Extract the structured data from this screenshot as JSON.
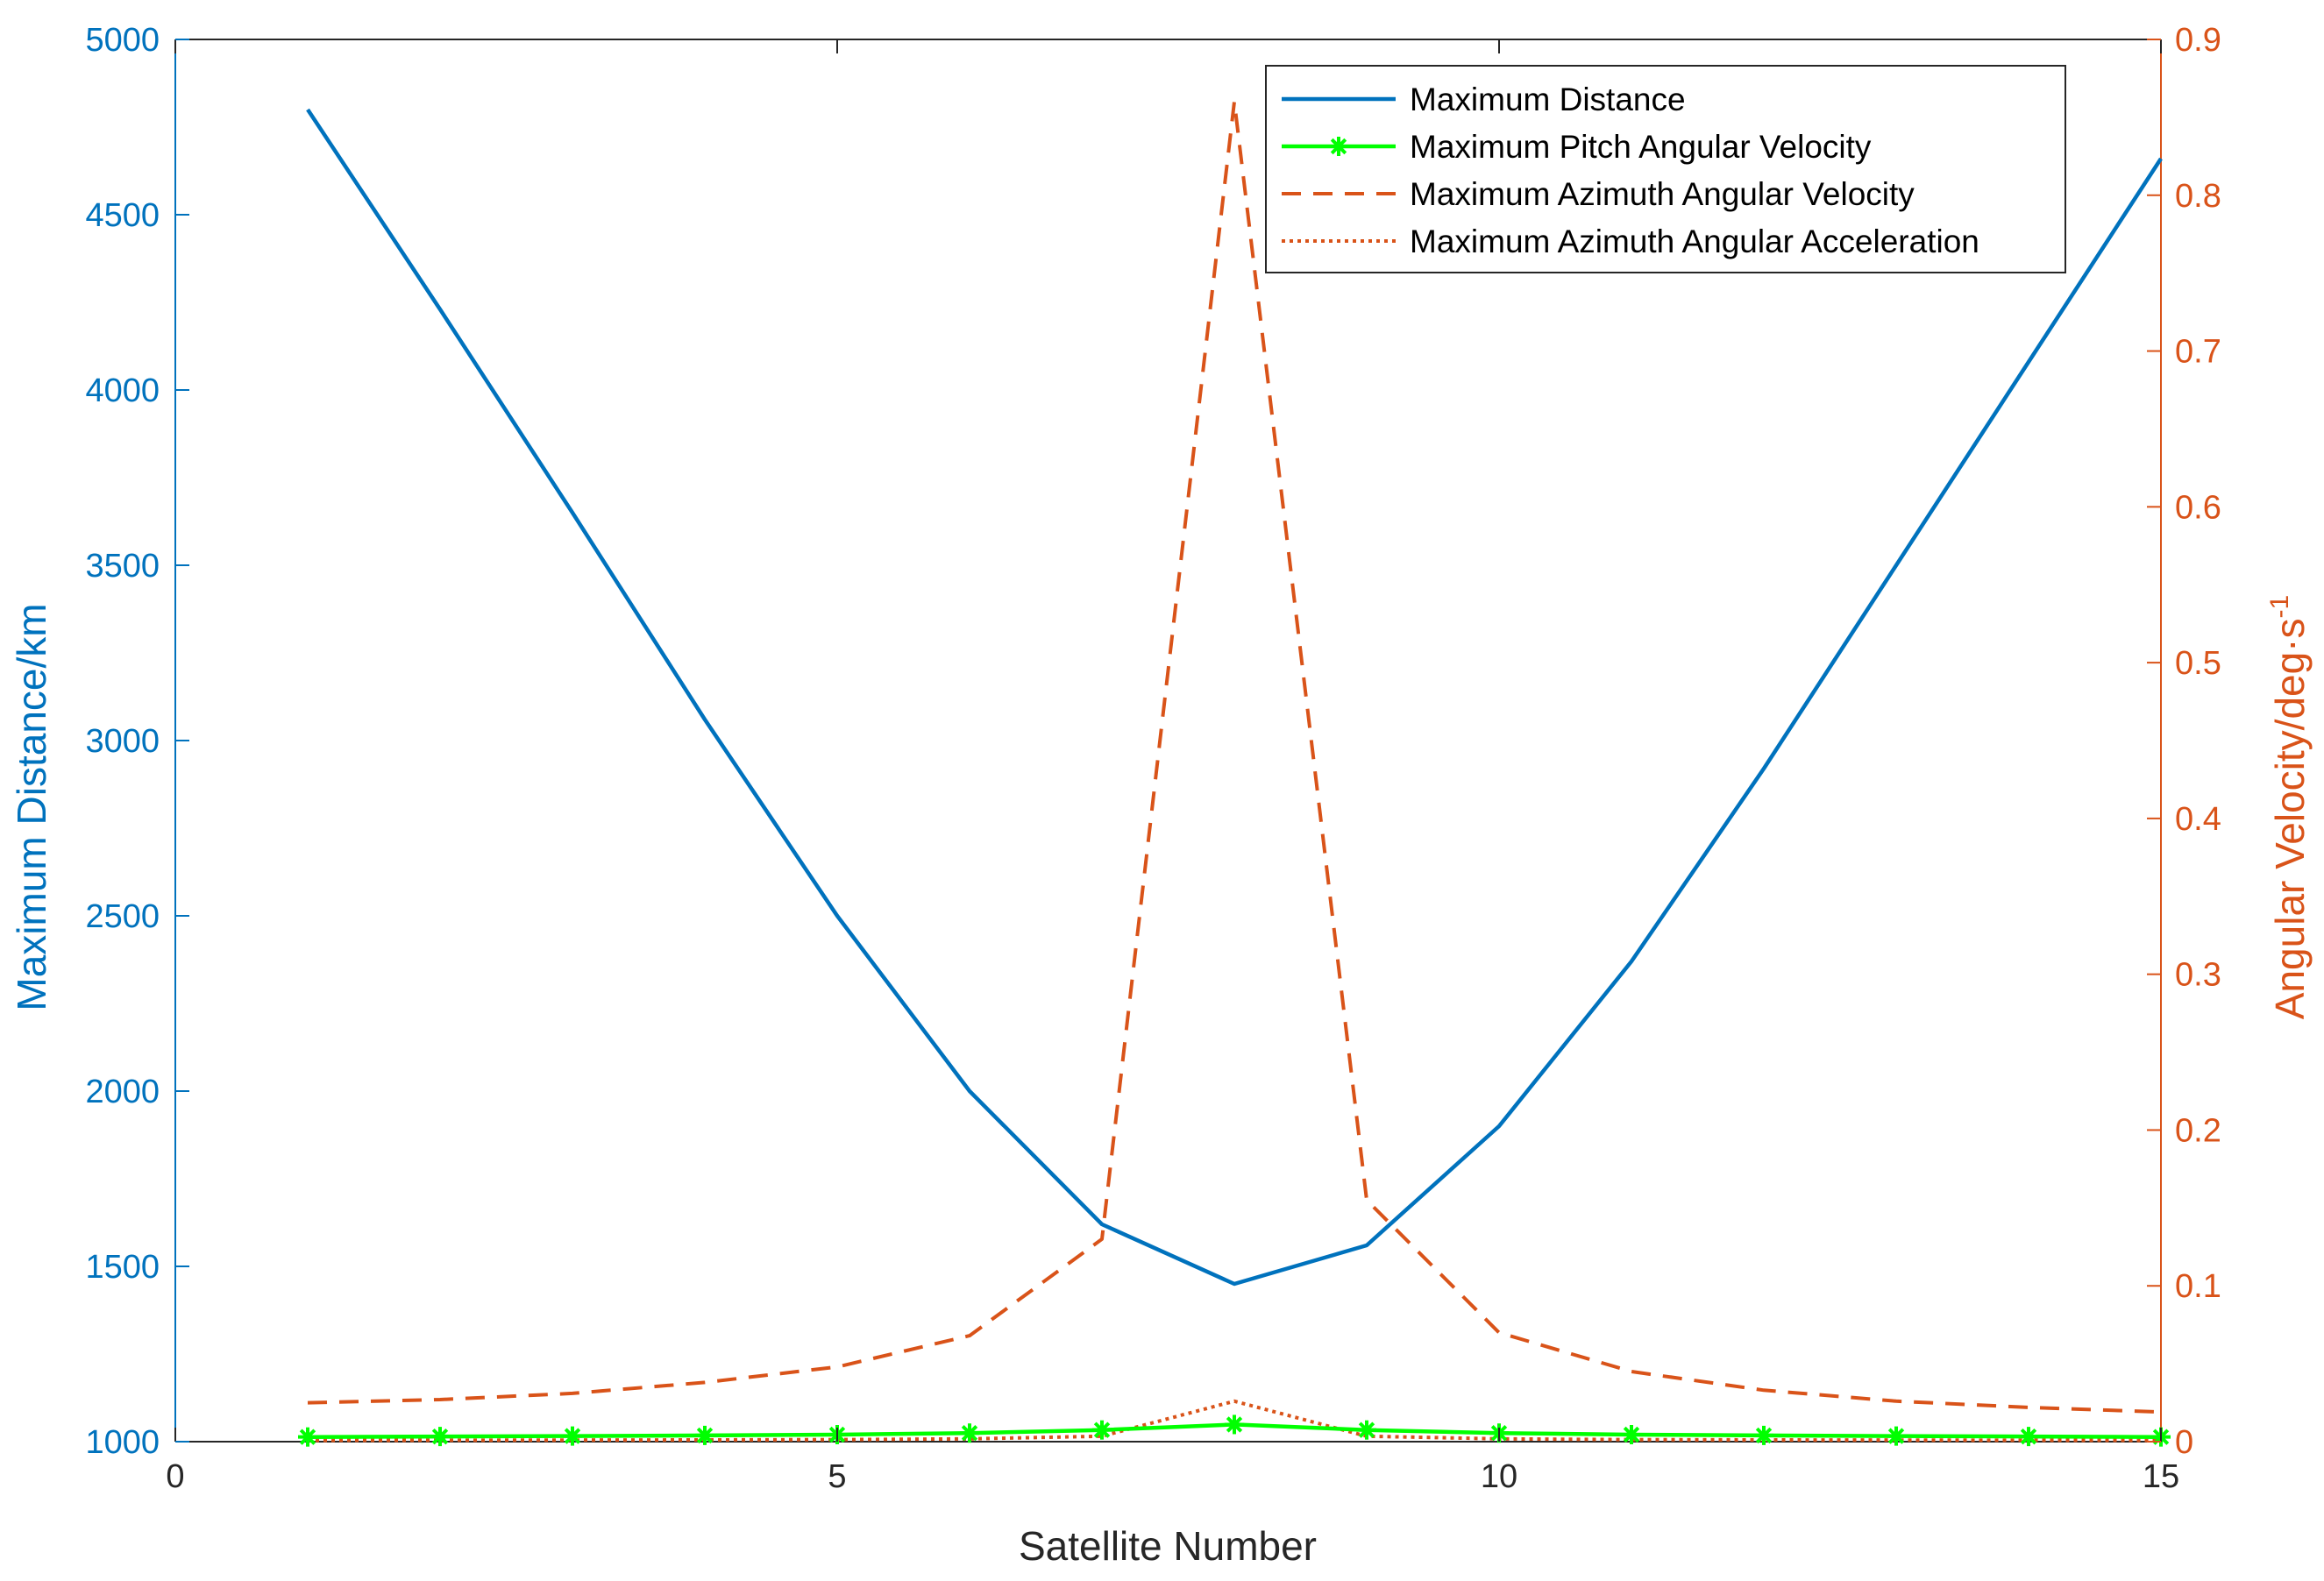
{
  "colors": {
    "left_axis": "#0072BD",
    "right_axis": "#D95319",
    "pitch": "#00FF00",
    "frame": "#000000"
  },
  "chart_data": {
    "type": "line",
    "xlabel": "Satellite Number",
    "ylabel_left": "Maximum Distance/km",
    "ylabel_right_base": "Angular Velocity/deg·s",
    "ylabel_right_exp": "-1",
    "xlim": [
      0,
      15
    ],
    "ylim_left": [
      1000,
      5000
    ],
    "ylim_right": [
      0,
      0.9
    ],
    "xticks": [
      "0",
      "5",
      "10",
      "15"
    ],
    "yticks_left": [
      "1000",
      "1500",
      "2000",
      "2500",
      "3000",
      "3500",
      "4000",
      "4500",
      "5000"
    ],
    "yticks_right": [
      "0",
      "0.1",
      "0.2",
      "0.3",
      "0.4",
      "0.5",
      "0.6",
      "0.7",
      "0.8",
      "0.9"
    ],
    "legend_position": "top-right",
    "x": [
      1,
      2,
      3,
      4,
      5,
      6,
      7,
      8,
      9,
      10,
      11,
      12,
      13,
      14,
      15
    ],
    "series": [
      {
        "name": "Maximum Distance",
        "axis": "left",
        "style": "solid",
        "values": [
          4800,
          4230,
          3650,
          3060,
          2500,
          2000,
          1620,
          1450,
          1560,
          1900,
          2370,
          2920,
          3500,
          4080,
          4660
        ]
      },
      {
        "name": "Maximum Pitch Angular Velocity",
        "axis": "right",
        "style": "solid-marker",
        "values": [
          0.003,
          0.0033,
          0.0036,
          0.004,
          0.0045,
          0.0055,
          0.0075,
          0.011,
          0.0075,
          0.0055,
          0.0045,
          0.004,
          0.0036,
          0.0033,
          0.003
        ]
      },
      {
        "name": "Maximum Azimuth Angular Velocity",
        "axis": "right",
        "style": "dashed",
        "values": [
          0.025,
          0.027,
          0.031,
          0.038,
          0.048,
          0.068,
          0.13,
          0.86,
          0.155,
          0.07,
          0.045,
          0.033,
          0.026,
          0.022,
          0.019
        ]
      },
      {
        "name": "Maximum Azimuth Angular Acceleration",
        "axis": "right",
        "style": "dotted",
        "values": [
          0.0008,
          0.0009,
          0.001,
          0.0011,
          0.0013,
          0.0018,
          0.0035,
          0.026,
          0.0035,
          0.0018,
          0.0013,
          0.0011,
          0.001,
          0.0009,
          0.0008
        ]
      }
    ]
  }
}
